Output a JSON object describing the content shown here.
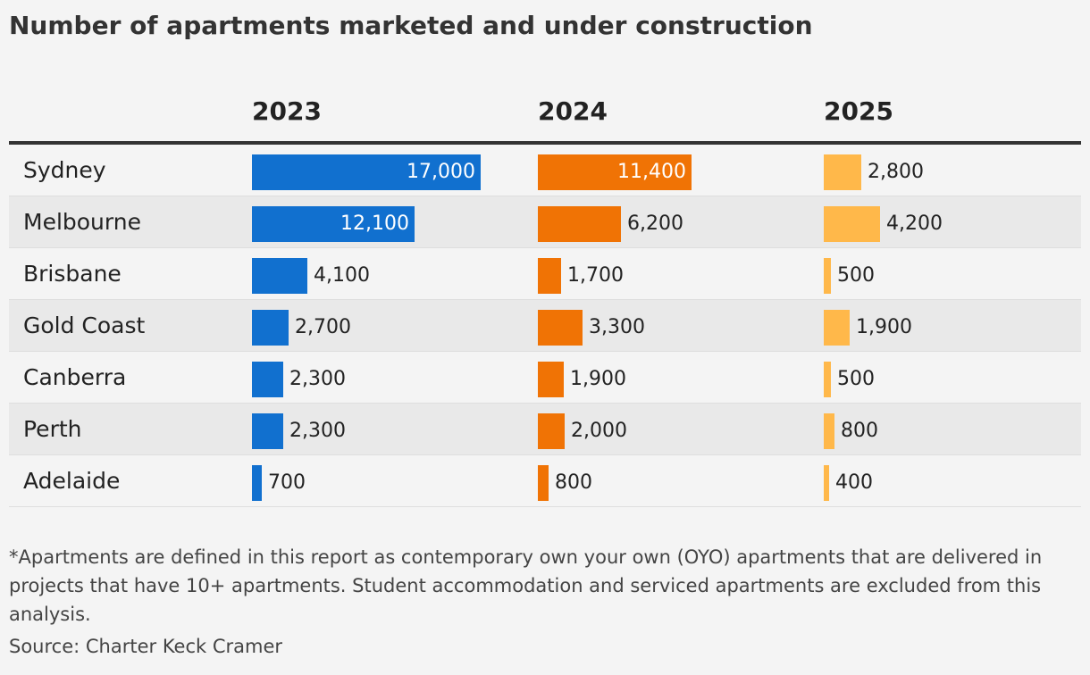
{
  "title": "Number of apartments marketed and under construction",
  "footnote": "*Apartments are defined in this report as contemporary own your own (OYO) apartments that are delivered in projects that have 10+ apartments. Student accommodation and serviced apartments are excluded from this analysis.",
  "source": "Source: Charter Keck Cramer",
  "colors": {
    "2023": "#1170cf",
    "2024": "#f07305",
    "2025": "#ffb84a"
  },
  "chart_data": {
    "type": "bar",
    "title": "Number of apartments marketed and under construction",
    "categories": [
      "Sydney",
      "Melbourne",
      "Brisbane",
      "Gold Coast",
      "Canberra",
      "Perth",
      "Adelaide"
    ],
    "series": [
      {
        "name": "2023",
        "values": [
          17000,
          12100,
          4100,
          2700,
          2300,
          2300,
          700
        ],
        "labels": [
          "17,000",
          "12,100",
          "4,100",
          "2,700",
          "2,300",
          "2,300",
          "700"
        ]
      },
      {
        "name": "2024",
        "values": [
          11400,
          6200,
          1700,
          3300,
          1900,
          2000,
          800
        ],
        "labels": [
          "11,400",
          "6,200",
          "1,700",
          "3,300",
          "1,900",
          "2,000",
          "800"
        ]
      },
      {
        "name": "2025",
        "values": [
          2800,
          4200,
          500,
          1900,
          500,
          800,
          400
        ],
        "labels": [
          "2,800",
          "4,200",
          "500",
          "1,900",
          "500",
          "800",
          "400"
        ]
      }
    ],
    "grid": false,
    "legend": "none"
  }
}
